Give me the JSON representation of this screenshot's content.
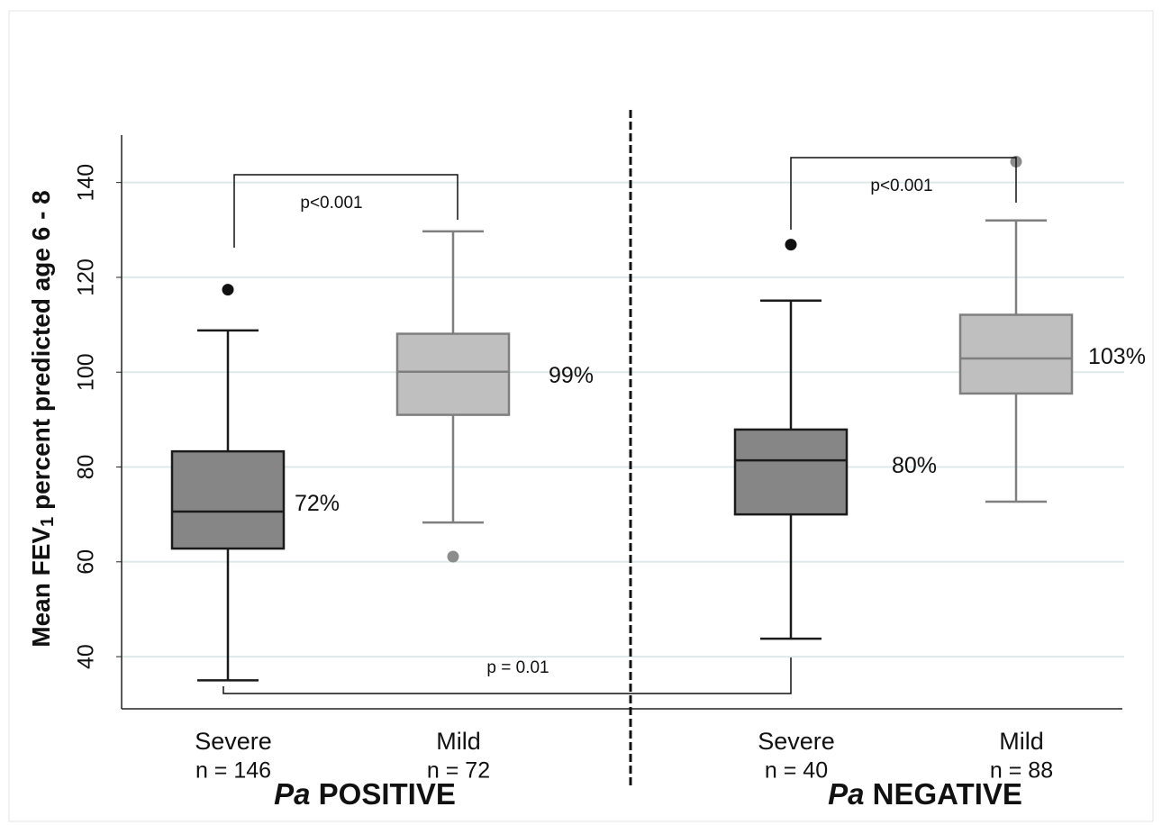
{
  "chart_data": {
    "type": "box",
    "ylabel": {
      "text": "Mean FEV",
      "subscript": "1",
      "rest": " percent predicted age 6 - 8"
    },
    "ylim": [
      29,
      150
    ],
    "yticks": [
      40,
      60,
      80,
      100,
      120,
      140
    ],
    "grid": true,
    "categories": [
      "Severe",
      "Mild",
      "Severe",
      "Mild"
    ],
    "n_labels": [
      "n = 146",
      "n = 72",
      "n = 40",
      "n = 88"
    ],
    "groups": [
      {
        "italic": "Pa",
        "label": "POSITIVE"
      },
      {
        "italic": "Pa",
        "label": "NEGATIVE"
      }
    ],
    "boxes": [
      {
        "whisker_low": 35,
        "q1": 62.8,
        "median": 70.6,
        "q3": 83.3,
        "whisker_high": 108.8,
        "outliers": [
          117.4
        ],
        "mean": 72,
        "mean_label": "72%",
        "fill": "#868686",
        "stroke": "#1a1a1a",
        "outlier_color": "#111111"
      },
      {
        "whisker_low": 68.3,
        "q1": 91,
        "median": 100.1,
        "q3": 108.1,
        "whisker_high": 129.7,
        "outliers": [
          61.1
        ],
        "mean": 99,
        "mean_label": "99%",
        "fill": "#bfbfbf",
        "stroke": "#7f7f7f",
        "outlier_color": "#8c8c8c"
      },
      {
        "whisker_low": 43.8,
        "q1": 70,
        "median": 81.4,
        "q3": 87.9,
        "whisker_high": 115.1,
        "outliers": [
          126.9
        ],
        "mean": 80,
        "mean_label": "80%",
        "fill": "#868686",
        "stroke": "#1a1a1a",
        "outlier_color": "#111111"
      },
      {
        "whisker_low": 72.7,
        "q1": 95.5,
        "median": 102.9,
        "q3": 112.1,
        "whisker_high": 132,
        "outliers": [
          144.4
        ],
        "mean": 103,
        "mean_label": "103%",
        "fill": "#bfbfbf",
        "stroke": "#7f7f7f",
        "outlier_color": "#8c8c8c"
      }
    ],
    "annotations": [
      "p<0.001",
      "p<0.001",
      "p = 0.01"
    ]
  }
}
